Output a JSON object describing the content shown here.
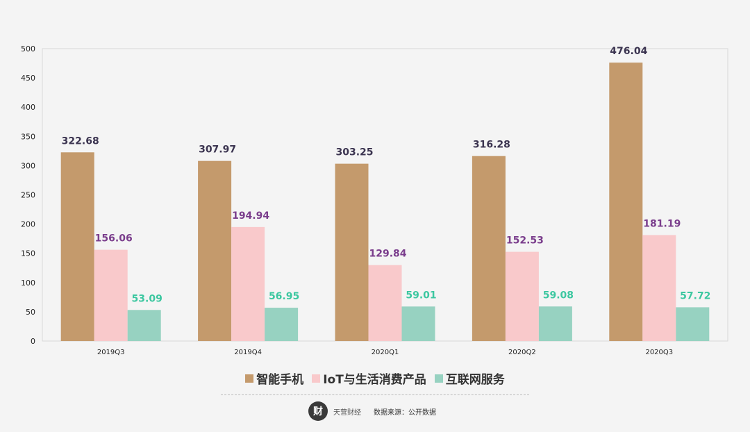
{
  "chart_data": {
    "type": "bar",
    "categories": [
      "2019Q3",
      "2019Q4",
      "2020Q1",
      "2020Q2",
      "2020Q3"
    ],
    "series": [
      {
        "name": "智能手机",
        "color": "#c49a6c",
        "label_color": "#3b3450",
        "values": [
          322.68,
          307.97,
          303.25,
          316.28,
          476.04
        ]
      },
      {
        "name": "IoT与生活消费产品",
        "color": "#f9c9cb",
        "label_color": "#7a3d8c",
        "values": [
          156.06,
          194.94,
          129.84,
          152.53,
          181.19
        ]
      },
      {
        "name": "互联网服务",
        "color": "#97d2c1",
        "label_color": "#3cc7a0",
        "values": [
          53.09,
          56.95,
          59.01,
          59.08,
          57.72
        ]
      }
    ],
    "yticks": [
      0,
      50,
      100,
      150,
      200,
      250,
      300,
      350,
      400,
      450,
      500
    ],
    "ylim": [
      0,
      500
    ],
    "grid": false,
    "legend_position": "bottom"
  },
  "footer": {
    "logo_mark": "财",
    "logo_text": "天营财经",
    "source": "数据来源：公开数据"
  }
}
